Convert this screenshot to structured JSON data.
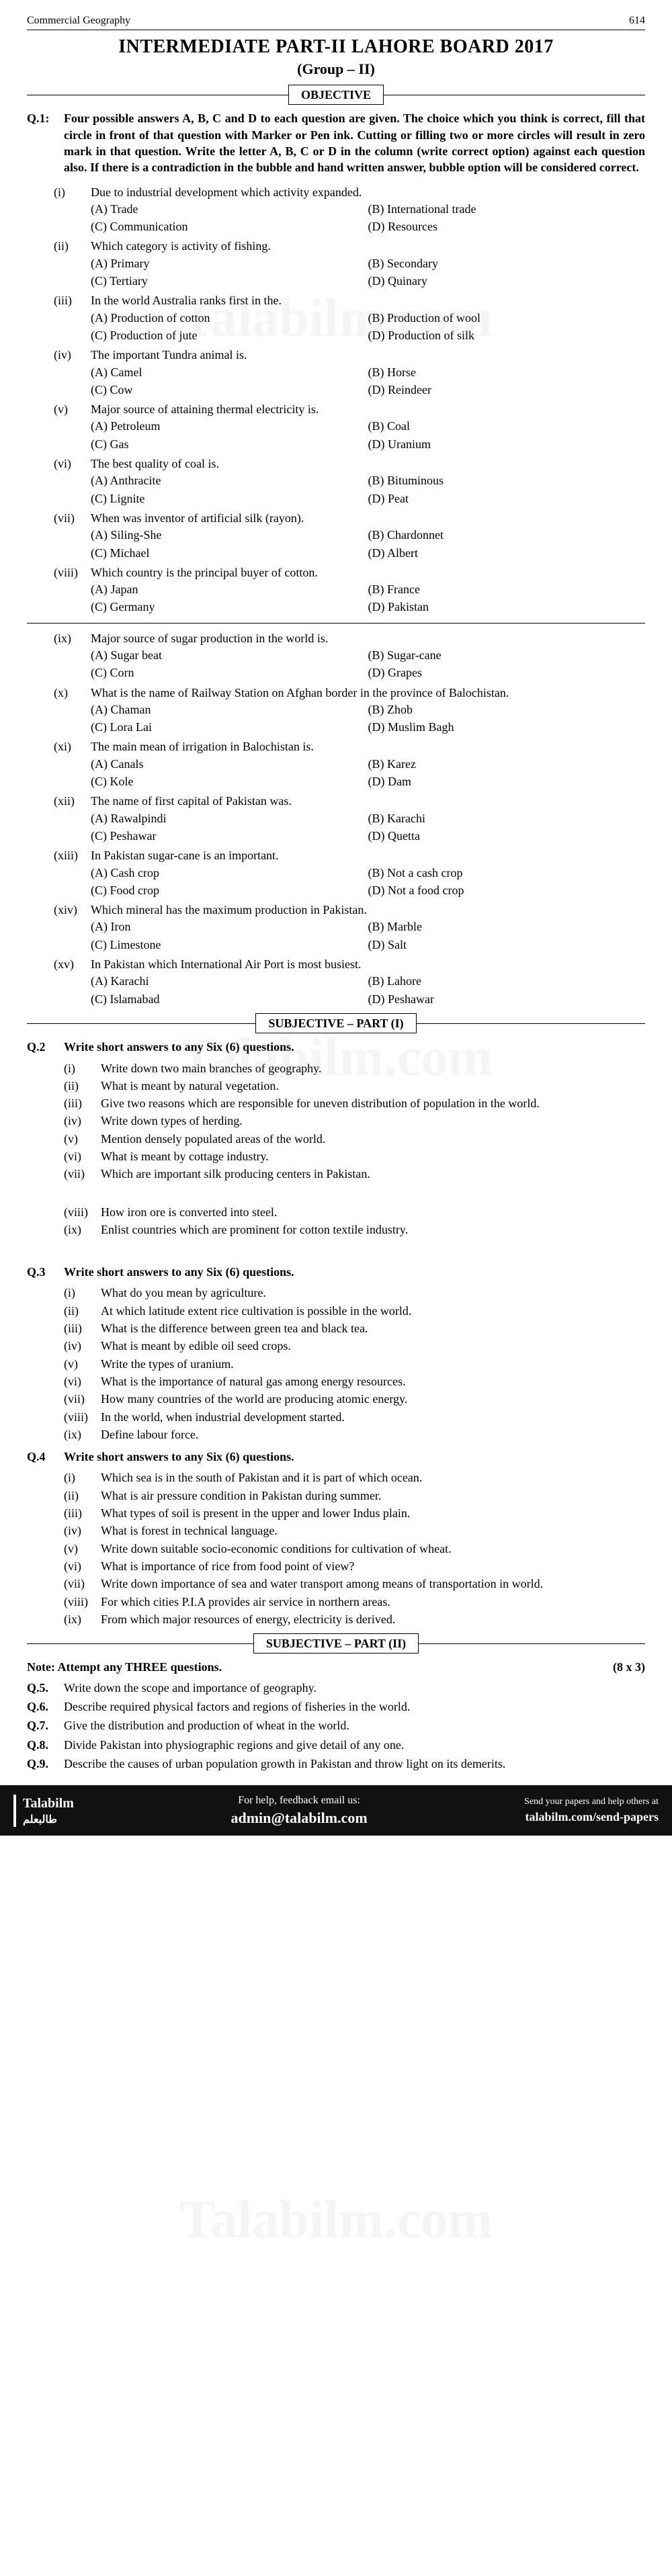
{
  "header": {
    "subject": "Commercial Geography",
    "page": "614"
  },
  "title": "INTERMEDIATE PART-II LAHORE BOARD 2017",
  "group": "(Group – II)",
  "sections": {
    "objective": "OBJECTIVE",
    "subjective1": "SUBJECTIVE – PART (I)",
    "subjective2": "SUBJECTIVE – PART (II)"
  },
  "q1": {
    "label": "Q.1:",
    "text": "Four possible answers A, B, C and D to each question are given. The choice which you think is correct, fill that circle in front of that question with Marker or Pen ink. Cutting or filling two or more circles will result in zero mark in that question. Write the letter A, B, C or D in the column (write correct option) against each question also. If there is a contradiction in the bubble and hand written answer, bubble option will be considered correct."
  },
  "mcqs": [
    {
      "n": "(i)",
      "stem": "Due to industrial development which activity expanded.",
      "opts": [
        "(A)   Trade",
        "(B)   International trade",
        "(C)   Communication",
        "(D)   Resources"
      ]
    },
    {
      "n": "(ii)",
      "stem": "Which category is activity of fishing.",
      "opts": [
        "(A)   Primary",
        "(B)   Secondary",
        "(C)   Tertiary",
        "(D)   Quinary"
      ]
    },
    {
      "n": "(iii)",
      "stem": "In the world Australia ranks first in the.",
      "opts": [
        "(A)   Production of cotton",
        "(B)   Production of wool",
        "(C)   Production of jute",
        "(D)   Production of silk"
      ]
    },
    {
      "n": "(iv)",
      "stem": "The important Tundra animal is.",
      "opts": [
        "(A)   Camel",
        "(B)   Horse",
        "(C)   Cow",
        "(D)   Reindeer"
      ]
    },
    {
      "n": "(v)",
      "stem": "Major source of attaining thermal electricity is.",
      "opts": [
        "(A)   Petroleum",
        "(B)   Coal",
        "(C)   Gas",
        "(D)   Uranium"
      ]
    },
    {
      "n": "(vi)",
      "stem": "The best quality of coal is.",
      "opts": [
        "(A)   Anthracite",
        "(B)   Bituminous",
        "(C)   Lignite",
        "(D)   Peat"
      ]
    },
    {
      "n": "(vii)",
      "stem": "When was inventor of artificial silk (rayon).",
      "opts": [
        "(A)   Siling-She",
        "(B)   Chardonnet",
        "(C)   Michael",
        "(D)   Albert"
      ]
    },
    {
      "n": "(viii)",
      "stem": "Which country is the principal buyer of cotton.",
      "opts": [
        "(A)   Japan",
        "(B)   France",
        "(C)   Germany",
        "(D)   Pakistan"
      ]
    }
  ],
  "mcqs2": [
    {
      "n": "(ix)",
      "stem": "Major source of sugar production in the world is.",
      "opts": [
        "(A)   Sugar beat",
        "(B)   Sugar-cane",
        "(C)   Corn",
        "(D)   Grapes"
      ]
    },
    {
      "n": "(x)",
      "stem": "What is the name of Railway Station on Afghan border in the province of Balochistan.",
      "opts": [
        "(A)   Chaman",
        "(B)   Zhob",
        "(C)   Lora Lai",
        "(D)   Muslim Bagh"
      ]
    },
    {
      "n": "(xi)",
      "stem": "The main mean of irrigation in Balochistan is.",
      "opts": [
        "(A)   Canals",
        "(B)   Karez",
        "(C)   Kole",
        "(D)   Dam"
      ]
    },
    {
      "n": "(xii)",
      "stem": "The name of first capital of Pakistan was.",
      "opts": [
        "(A)   Rawalpindi",
        "(B)   Karachi",
        "(C)   Peshawar",
        "(D)   Quetta"
      ]
    },
    {
      "n": "(xiii)",
      "stem": "In Pakistan sugar-cane is an important.",
      "opts": [
        "(A)   Cash crop",
        "(B)   Not a cash crop",
        "(C)   Food crop",
        "(D)   Not a food crop"
      ]
    },
    {
      "n": "(xiv)",
      "stem": "Which mineral has the maximum production in Pakistan.",
      "opts": [
        "(A)   Iron",
        "(B)   Marble",
        "(C)   Limestone",
        "(D)   Salt"
      ]
    },
    {
      "n": "(xv)",
      "stem": "In Pakistan which International Air Port is most busiest.",
      "opts": [
        "(A)   Karachi",
        "(B)   Lahore",
        "(C)   Islamabad",
        "(D)   Peshawar"
      ]
    }
  ],
  "q2": {
    "label": "Q.2",
    "text": "Write short answers to any Six (6) questions.",
    "items": [
      {
        "n": "(i)",
        "t": "Write down two main branches of geography."
      },
      {
        "n": "(ii)",
        "t": "What is meant by natural vegetation."
      },
      {
        "n": "(iii)",
        "t": "Give two reasons which are responsible for uneven distribution of population in the world."
      },
      {
        "n": "(iv)",
        "t": "Write down types of herding."
      },
      {
        "n": "(v)",
        "t": "Mention densely populated areas of the world."
      },
      {
        "n": "(vi)",
        "t": "What is meant by cottage industry."
      },
      {
        "n": "(vii)",
        "t": "Which are important silk producing centers in Pakistan."
      },
      {
        "n": "(viii)",
        "t": "How iron ore is converted into steel."
      },
      {
        "n": "(ix)",
        "t": "Enlist countries which are prominent for cotton textile industry."
      }
    ]
  },
  "q3": {
    "label": "Q.3",
    "text": "Write short answers to any Six (6) questions.",
    "items": [
      {
        "n": "(i)",
        "t": "What do you mean by agriculture."
      },
      {
        "n": "(ii)",
        "t": "At which latitude extent rice cultivation is possible in the world."
      },
      {
        "n": "(iii)",
        "t": "What is the difference between green tea and black tea."
      },
      {
        "n": "(iv)",
        "t": "What is meant by edible oil seed crops."
      },
      {
        "n": "(v)",
        "t": "Write the types of uranium."
      },
      {
        "n": "(vi)",
        "t": "What is the importance of natural gas among energy resources."
      },
      {
        "n": "(vii)",
        "t": "How many countries of the world are producing atomic energy."
      },
      {
        "n": "(viii)",
        "t": "In the world, when industrial development started."
      },
      {
        "n": "(ix)",
        "t": "Define labour force."
      }
    ]
  },
  "q4": {
    "label": "Q.4",
    "text": "Write short answers to any Six (6) questions.",
    "items": [
      {
        "n": "(i)",
        "t": "Which sea is in the south of Pakistan and it is part of which ocean."
      },
      {
        "n": "(ii)",
        "t": "What is air pressure condition in Pakistan during summer."
      },
      {
        "n": "(iii)",
        "t": "What types of soil is present in the upper and lower Indus plain."
      },
      {
        "n": "(iv)",
        "t": "What is forest in technical language."
      },
      {
        "n": "(v)",
        "t": "Write down suitable socio-economic conditions for cultivation of wheat."
      },
      {
        "n": "(vi)",
        "t": "What is importance of rice from food point of view?"
      },
      {
        "n": "(vii)",
        "t": "Write down importance of sea and water transport among means of transportation in world."
      },
      {
        "n": "(viii)",
        "t": "For which cities P.I.A provides air service in northern areas."
      },
      {
        "n": "(ix)",
        "t": "From which major resources of energy, electricity is derived."
      }
    ]
  },
  "note": {
    "text": "Note:  Attempt any THREE questions.",
    "marks": "(8 x 3)"
  },
  "longq": [
    {
      "label": "Q.5.",
      "t": "Write down the scope and importance of geography."
    },
    {
      "label": "Q.6.",
      "t": "Describe required physical factors and regions of fisheries in the world."
    },
    {
      "label": "Q.7.",
      "t": "Give the distribution and production of wheat in the world."
    },
    {
      "label": "Q.8.",
      "t": "Divide Pakistan into physiographic regions and give detail of any one."
    },
    {
      "label": "Q.9.",
      "t": "Describe the causes of urban population growth in Pakistan and throw light on its demerits."
    }
  ],
  "footer": {
    "brand": "Talabilm",
    "mid1": "For help, feedback email us:",
    "mid2": "admin@talabilm.com",
    "r1": "Send your papers and help others at",
    "r2": "talabilm.com/send-papers"
  },
  "watermark": "Talabilm.com"
}
